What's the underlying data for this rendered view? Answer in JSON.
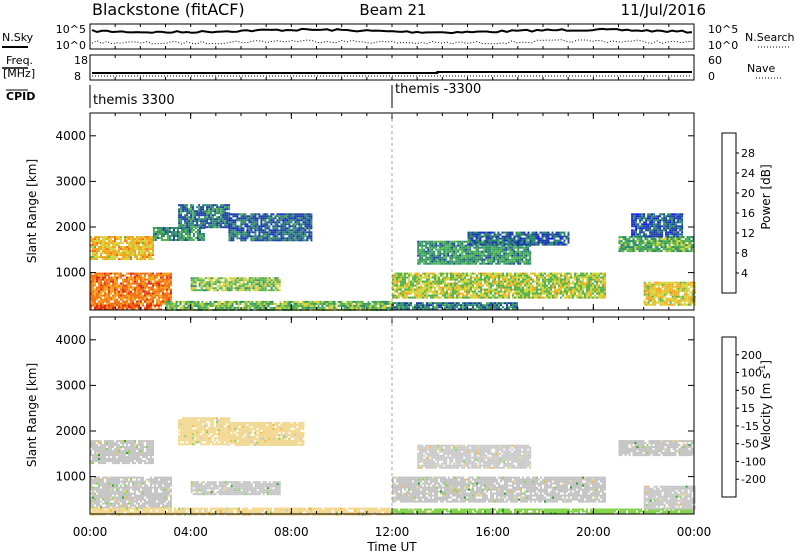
{
  "header": {
    "station": "Blackstone (fitACF)",
    "beam": "Beam 21",
    "date": "11/Jul/2016"
  },
  "nsky_panel": {
    "left_label": "N.Sky",
    "left_ticks": [
      "10^5",
      "10^0"
    ],
    "right_ticks": [
      "10^5",
      "10^0"
    ],
    "right_label": "N.Search"
  },
  "freq_panel": {
    "left_label_line1": "Freq.",
    "left_label_line2": "[MHz]",
    "left_ticks": [
      "18",
      "8"
    ],
    "right_ticks": [
      "60",
      "0"
    ],
    "right_label": "Nave"
  },
  "cpid_panel": {
    "label": "CPID",
    "segments": [
      {
        "text": "themis 3300",
        "start_hour": 0
      },
      {
        "text": "themis -3300",
        "start_hour": 12
      }
    ]
  },
  "colors": {
    "power_scale": [
      "#1414ff",
      "#1c3ea8",
      "#2c8a6a",
      "#4fb44f",
      "#d4d43a",
      "#f4a41a",
      "#f46e14",
      "#e0281a",
      "#ff0000"
    ],
    "velocity_scale": [
      "#ff0000",
      "#f4740e",
      "#f4b830",
      "#f2d78c",
      "#c8c8c8",
      "#86d44c",
      "#28a028",
      "#1e5aa0",
      "#1c1cb4"
    ],
    "ground_scatter": "#c4c4c4"
  },
  "chart_data": [
    {
      "type": "heatmap",
      "panel": "power",
      "xlabel": "",
      "ylabel": "Slant Range [km]",
      "xlim": [
        0,
        24
      ],
      "ylim": [
        180,
        4500
      ],
      "yticks": [
        "1000",
        "2000",
        "3000",
        "4000"
      ],
      "colorbar": {
        "label": "Power [dB]",
        "ticks": [
          "4",
          "8",
          "12",
          "16",
          "20",
          "24",
          "28"
        ],
        "range": [
          0,
          32
        ]
      },
      "regions": [
        {
          "t0": 0.0,
          "t1": 2.8,
          "r0": 200,
          "r1": 300,
          "v": 24
        },
        {
          "t0": 0.0,
          "t1": 3.2,
          "r0": 300,
          "r1": 1000,
          "v": 22
        },
        {
          "t0": 0.0,
          "t1": 2.5,
          "r0": 1300,
          "r1": 1800,
          "v": 18
        },
        {
          "t0": 2.5,
          "t1": 4.5,
          "r0": 1700,
          "r1": 2000,
          "v": 10
        },
        {
          "t0": 3.0,
          "t1": 12.0,
          "r0": 200,
          "r1": 380,
          "v": 13
        },
        {
          "t0": 3.5,
          "t1": 5.5,
          "r0": 2000,
          "r1": 2500,
          "v": 8
        },
        {
          "t0": 5.5,
          "t1": 8.8,
          "r0": 1700,
          "r1": 2300,
          "v": 7
        },
        {
          "t0": 4.0,
          "t1": 7.5,
          "r0": 600,
          "r1": 900,
          "v": 14
        },
        {
          "t0": 12.0,
          "t1": 20.5,
          "r0": 450,
          "r1": 1000,
          "v": 15
        },
        {
          "t0": 12.0,
          "t1": 17.0,
          "r0": 180,
          "r1": 350,
          "v": 8
        },
        {
          "t0": 13.0,
          "t1": 17.5,
          "r0": 1200,
          "r1": 1700,
          "v": 10
        },
        {
          "t0": 15.0,
          "t1": 19.0,
          "r0": 1600,
          "r1": 1900,
          "v": 7
        },
        {
          "t0": 21.0,
          "t1": 24.0,
          "r0": 1450,
          "r1": 1800,
          "v": 12
        },
        {
          "t0": 22.0,
          "t1": 24.0,
          "r0": 300,
          "r1": 800,
          "v": 17
        },
        {
          "t0": 21.5,
          "t1": 23.5,
          "r0": 1800,
          "r1": 2300,
          "v": 6
        }
      ]
    },
    {
      "type": "heatmap",
      "panel": "velocity",
      "xlabel": "Time UT",
      "ylabel": "Slant Range [km]",
      "xlim": [
        0,
        24
      ],
      "ylim": [
        180,
        4500
      ],
      "xticks": [
        "00:00",
        "04:00",
        "08:00",
        "12:00",
        "16:00",
        "20:00",
        "00:00"
      ],
      "yticks": [
        "1000",
        "2000",
        "3000",
        "4000"
      ],
      "colorbar": {
        "label": "Velocity [m s^-1]",
        "ticks": [
          "-200",
          "-100",
          "-50",
          "-15",
          "15",
          "50",
          "100",
          "200"
        ],
        "range": [
          -250,
          250
        ]
      },
      "regions": [
        {
          "t0": 0.0,
          "t1": 3.2,
          "r0": 300,
          "r1": 1000,
          "v": 0
        },
        {
          "t0": 0.0,
          "t1": 2.5,
          "r0": 1300,
          "r1": 1800,
          "v": 0
        },
        {
          "t0": 0.0,
          "t1": 12.0,
          "r0": 180,
          "r1": 320,
          "v": -40
        },
        {
          "t0": 3.5,
          "t1": 5.5,
          "r0": 1700,
          "r1": 2300,
          "v": -40
        },
        {
          "t0": 5.5,
          "t1": 8.5,
          "r0": 1700,
          "r1": 2200,
          "v": -30
        },
        {
          "t0": 4.0,
          "t1": 7.5,
          "r0": 600,
          "r1": 900,
          "v": 0
        },
        {
          "t0": 12.0,
          "t1": 20.5,
          "r0": 450,
          "r1": 1000,
          "v": 0
        },
        {
          "t0": 12.0,
          "t1": 24.0,
          "r0": 180,
          "r1": 300,
          "v": 40
        },
        {
          "t0": 13.0,
          "t1": 17.5,
          "r0": 1200,
          "r1": 1700,
          "v": -20
        },
        {
          "t0": 21.0,
          "t1": 24.0,
          "r0": 1450,
          "r1": 1800,
          "v": 0
        },
        {
          "t0": 22.0,
          "t1": 24.0,
          "r0": 300,
          "r1": 800,
          "v": 0
        }
      ]
    }
  ]
}
